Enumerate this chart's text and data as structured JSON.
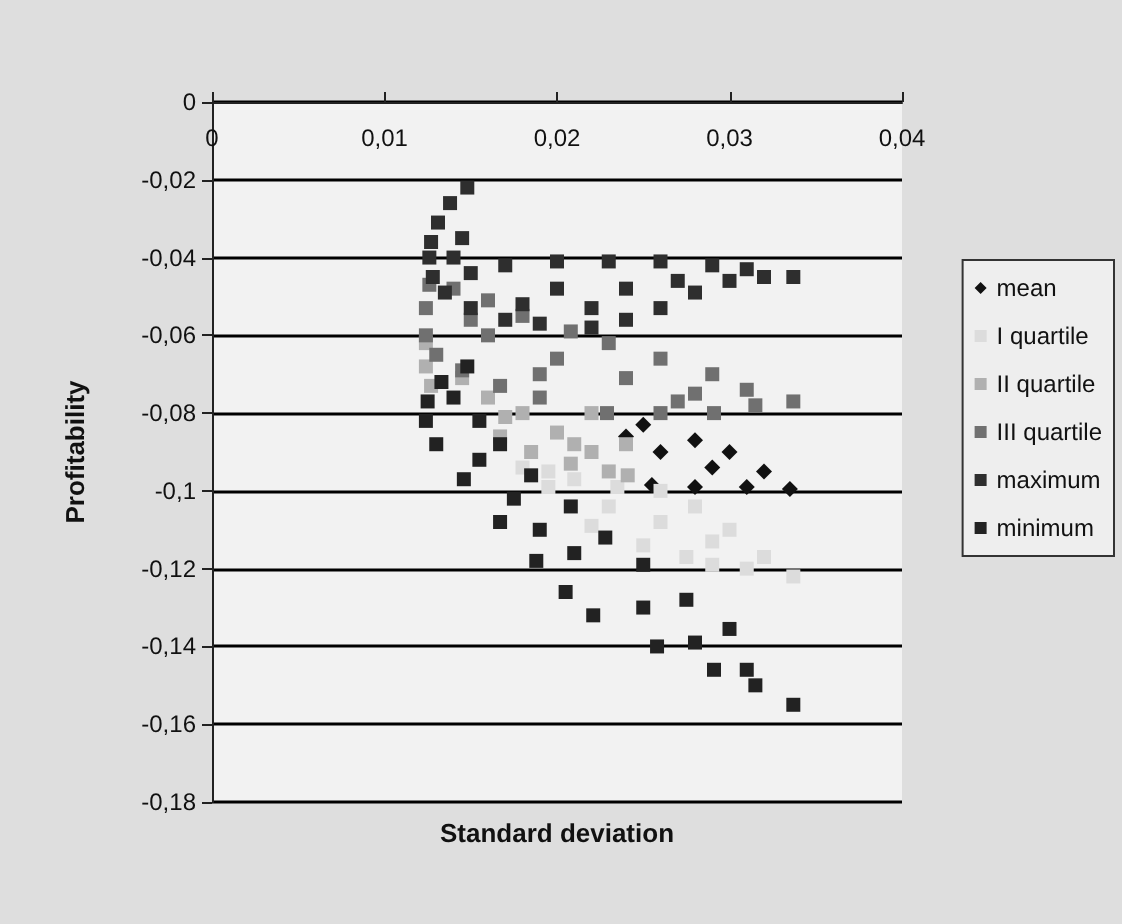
{
  "chart_data": {
    "type": "scatter",
    "xlabel": "Standard deviation",
    "ylabel": "Profitability",
    "xlim": [
      0,
      0.04
    ],
    "ylim": [
      -0.18,
      0
    ],
    "xticks": [
      0,
      {
        "value": 0.01,
        "label": "0,01"
      },
      {
        "value": 0.02,
        "label": "0,02"
      },
      {
        "value": 0.03,
        "label": "0,03"
      },
      {
        "value": 0.04,
        "label": "0,04"
      }
    ],
    "yticks": [
      0,
      {
        "value": -0.02,
        "label": "-0,02"
      },
      {
        "value": -0.04,
        "label": "-0,04"
      },
      {
        "value": -0.06,
        "label": "-0,06"
      },
      {
        "value": -0.08,
        "label": "-0,08"
      },
      {
        "value": -0.1,
        "label": "-0,1"
      },
      {
        "value": -0.12,
        "label": "-0,12"
      },
      {
        "value": -0.14,
        "label": "-0,14"
      },
      {
        "value": -0.16,
        "label": "-0,16"
      },
      {
        "value": -0.18,
        "label": "-0,18"
      }
    ],
    "grid": "y",
    "legend": "right",
    "marker": "square",
    "series": [
      {
        "name": "mean",
        "color": "#111111",
        "marker": "diamond",
        "x": [
          0.025,
          0.028,
          0.03,
          0.032,
          0.0335,
          0.031,
          0.028,
          0.0255,
          0.029,
          0.026,
          0.024
        ],
        "values": [
          -0.083,
          -0.087,
          -0.09,
          -0.095,
          -0.0995,
          -0.099,
          -0.099,
          -0.0985,
          -0.094,
          -0.09,
          -0.086
        ]
      },
      {
        "name": "I quartile",
        "color": "#dcdcdc",
        "x": [
          0.018,
          0.0195,
          0.022,
          0.025,
          0.0275,
          0.029,
          0.031,
          0.0337,
          0.032,
          0.03,
          0.028,
          0.026,
          0.0235,
          0.021,
          0.023,
          0.026,
          0.029,
          0.0195
        ],
        "values": [
          -0.094,
          -0.099,
          -0.109,
          -0.114,
          -0.117,
          -0.119,
          -0.12,
          -0.122,
          -0.117,
          -0.11,
          -0.104,
          -0.1,
          -0.099,
          -0.097,
          -0.104,
          -0.108,
          -0.113,
          -0.095
        ]
      },
      {
        "name": "II quartile",
        "color": "#b0b0b0",
        "x": [
          0.0124,
          0.0124,
          0.0127,
          0.0167,
          0.0185,
          0.0208,
          0.023,
          0.0241,
          0.022,
          0.02,
          0.018,
          0.016,
          0.0145,
          0.022,
          0.024,
          0.021,
          0.017
        ],
        "values": [
          -0.062,
          -0.068,
          -0.073,
          -0.086,
          -0.09,
          -0.093,
          -0.095,
          -0.096,
          -0.09,
          -0.085,
          -0.08,
          -0.076,
          -0.071,
          -0.08,
          -0.088,
          -0.088,
          -0.081
        ]
      },
      {
        "name": "III quartile",
        "color": "#707070",
        "x": [
          0.0126,
          0.0124,
          0.0124,
          0.013,
          0.0145,
          0.0167,
          0.019,
          0.0229,
          0.026,
          0.0291,
          0.0315,
          0.0337,
          0.031,
          0.029,
          0.026,
          0.023,
          0.0208,
          0.018,
          0.016,
          0.014,
          0.016,
          0.02,
          0.024,
          0.028,
          0.015,
          0.019,
          0.027
        ],
        "values": [
          -0.047,
          -0.053,
          -0.06,
          -0.065,
          -0.069,
          -0.073,
          -0.076,
          -0.08,
          -0.08,
          -0.08,
          -0.078,
          -0.077,
          -0.074,
          -0.07,
          -0.066,
          -0.062,
          -0.059,
          -0.055,
          -0.051,
          -0.048,
          -0.06,
          -0.066,
          -0.071,
          -0.075,
          -0.056,
          -0.07,
          -0.077
        ]
      },
      {
        "name": "maximum",
        "color": "#2e2e2e",
        "x": [
          0.0148,
          0.0138,
          0.0131,
          0.0127,
          0.0126,
          0.0128,
          0.0135,
          0.015,
          0.017,
          0.019,
          0.022,
          0.024,
          0.026,
          0.028,
          0.03,
          0.032,
          0.0337,
          0.031,
          0.029,
          0.026,
          0.023,
          0.02,
          0.017,
          0.015,
          0.02,
          0.024,
          0.027,
          0.018,
          0.022,
          0.0145,
          0.014
        ],
        "values": [
          -0.022,
          -0.026,
          -0.031,
          -0.036,
          -0.04,
          -0.045,
          -0.049,
          -0.053,
          -0.056,
          -0.057,
          -0.058,
          -0.056,
          -0.053,
          -0.049,
          -0.046,
          -0.045,
          -0.045,
          -0.043,
          -0.042,
          -0.041,
          -0.041,
          -0.041,
          -0.042,
          -0.044,
          -0.048,
          -0.048,
          -0.046,
          -0.052,
          -0.053,
          -0.035,
          -0.04
        ]
      },
      {
        "name": "minimum",
        "color": "#222222",
        "x": [
          0.0148,
          0.0133,
          0.0125,
          0.0124,
          0.013,
          0.0146,
          0.0167,
          0.0188,
          0.0205,
          0.0221,
          0.0258,
          0.0291,
          0.0315,
          0.0337,
          0.031,
          0.03,
          0.0275,
          0.025,
          0.0228,
          0.0208,
          0.0185,
          0.0167,
          0.0155,
          0.014,
          0.0175,
          0.021,
          0.025,
          0.028,
          0.0155,
          0.019
        ],
        "values": [
          -0.068,
          -0.072,
          -0.077,
          -0.082,
          -0.088,
          -0.097,
          -0.108,
          -0.118,
          -0.126,
          -0.132,
          -0.14,
          -0.146,
          -0.15,
          -0.155,
          -0.146,
          -0.1355,
          -0.128,
          -0.119,
          -0.112,
          -0.104,
          -0.096,
          -0.088,
          -0.082,
          -0.076,
          -0.102,
          -0.116,
          -0.13,
          -0.139,
          -0.092,
          -0.11
        ]
      }
    ]
  }
}
